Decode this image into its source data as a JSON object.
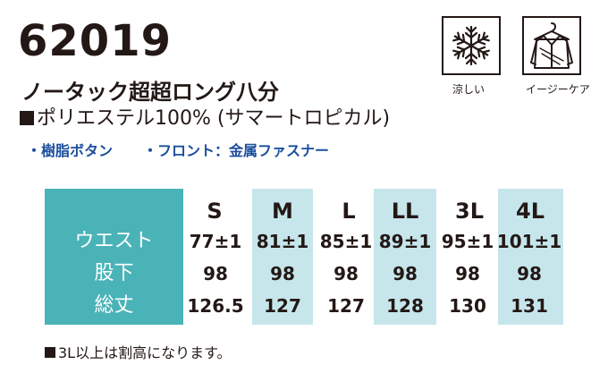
{
  "header": {
    "product_code": "62019",
    "product_name": "ノータック超超ロング八分",
    "material": "ポリエステル100% (サマートロピカル)",
    "features": [
      "・樹脂ボタン",
      "・フロント：金属ファスナー"
    ]
  },
  "icons": [
    {
      "icon": "snowflake-icon",
      "label": "涼しい"
    },
    {
      "icon": "shirt-hanger-icon",
      "label": "イージーケア"
    }
  ],
  "size_table": {
    "sizes": [
      "S",
      "M",
      "L",
      "LL",
      "3L",
      "4L"
    ],
    "rows": [
      {
        "label": "ウエスト",
        "values": [
          "77±1",
          "81±1",
          "85±1",
          "89±1",
          "95±1",
          "101±1"
        ]
      },
      {
        "label": "股下",
        "values": [
          "98",
          "98",
          "98",
          "98",
          "98",
          "98"
        ]
      },
      {
        "label": "総丈",
        "values": [
          "126.5",
          "127",
          "127",
          "128",
          "130",
          "131"
        ]
      }
    ]
  },
  "note": "3L以上は割高になります。",
  "colors": {
    "header_teal": "#4ab3b8",
    "highlight_col": "#c6e6ec",
    "feature_blue": "#1a4e9c",
    "text": "#231815"
  }
}
